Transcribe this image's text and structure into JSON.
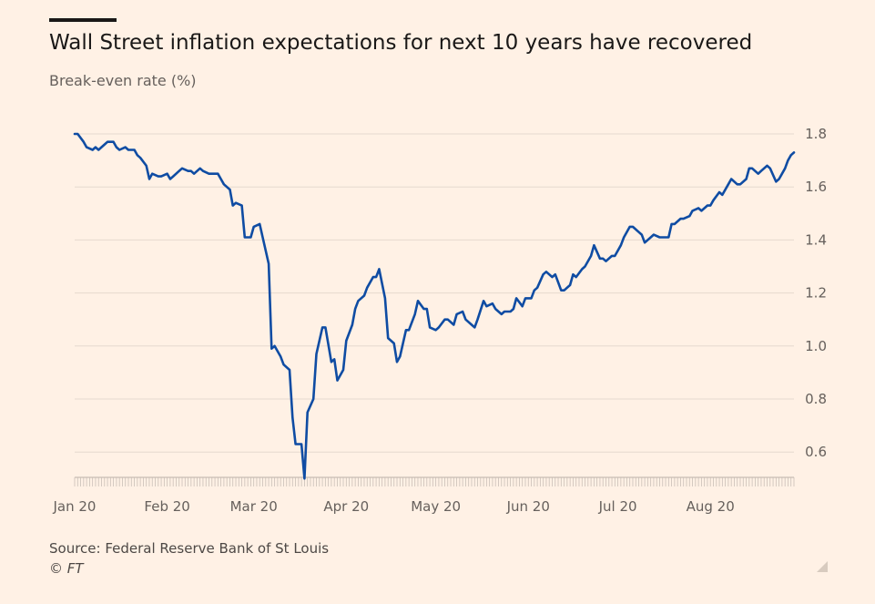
{
  "header": {
    "title": "Wall Street inflation expectations for next 10 years have recovered",
    "subtitle": "Break-even rate (%)"
  },
  "footer": {
    "source": "Source: Federal Reserve Bank of St Louis",
    "credit": "© FT"
  },
  "colors": {
    "background": "#fff1e5",
    "line": "#0f4ca3",
    "grid": "#e6d9ce",
    "text": "#33302e",
    "muted": "#66605c"
  },
  "chart_data": {
    "type": "line",
    "title": "Wall Street inflation expectations for next 10 years have recovered",
    "ylabel": "Break-even rate (%)",
    "xlabel": "",
    "ylim": [
      0.5,
      1.8
    ],
    "yticks": [
      0.6,
      0.8,
      1.0,
      1.2,
      1.4,
      1.6,
      1.8
    ],
    "ytick_labels": [
      "0.6",
      "0.8",
      "1.0",
      "1.2",
      "1.4",
      "1.6",
      "1.8"
    ],
    "x_unit": "days since 1 Jan 2020",
    "xlim": [
      0,
      241
    ],
    "xticks": [
      {
        "day": 0,
        "label": "Jan 20"
      },
      {
        "day": 31,
        "label": "Feb 20"
      },
      {
        "day": 60,
        "label": "Mar 20"
      },
      {
        "day": 91,
        "label": "Apr 20"
      },
      {
        "day": 121,
        "label": "May 20"
      },
      {
        "day": 152,
        "label": "Jun 20"
      },
      {
        "day": 182,
        "label": "Jul 20"
      },
      {
        "day": 213,
        "label": "Aug 20"
      }
    ],
    "grid": true,
    "series": [
      {
        "name": "Break-even rate",
        "points": [
          [
            0,
            1.8
          ],
          [
            1,
            1.8
          ],
          [
            3,
            1.77
          ],
          [
            4,
            1.75
          ],
          [
            6,
            1.74
          ],
          [
            7,
            1.75
          ],
          [
            8,
            1.74
          ],
          [
            10,
            1.76
          ],
          [
            11,
            1.77
          ],
          [
            13,
            1.77
          ],
          [
            14,
            1.75
          ],
          [
            15,
            1.74
          ],
          [
            17,
            1.75
          ],
          [
            18,
            1.74
          ],
          [
            20,
            1.74
          ],
          [
            21,
            1.72
          ],
          [
            22,
            1.71
          ],
          [
            24,
            1.68
          ],
          [
            25,
            1.63
          ],
          [
            26,
            1.65
          ],
          [
            28,
            1.64
          ],
          [
            29,
            1.64
          ],
          [
            31,
            1.65
          ],
          [
            32,
            1.63
          ],
          [
            33,
            1.64
          ],
          [
            35,
            1.66
          ],
          [
            36,
            1.67
          ],
          [
            38,
            1.66
          ],
          [
            39,
            1.66
          ],
          [
            40,
            1.65
          ],
          [
            42,
            1.67
          ],
          [
            43,
            1.66
          ],
          [
            45,
            1.65
          ],
          [
            46,
            1.65
          ],
          [
            48,
            1.65
          ],
          [
            49,
            1.63
          ],
          [
            50,
            1.61
          ],
          [
            52,
            1.59
          ],
          [
            53,
            1.53
          ],
          [
            54,
            1.54
          ],
          [
            56,
            1.53
          ],
          [
            57,
            1.41
          ],
          [
            59,
            1.41
          ],
          [
            60,
            1.45
          ],
          [
            62,
            1.46
          ],
          [
            63,
            1.41
          ],
          [
            65,
            1.31
          ],
          [
            66,
            0.99
          ],
          [
            67,
            1.0
          ],
          [
            69,
            0.96
          ],
          [
            70,
            0.93
          ],
          [
            72,
            0.91
          ],
          [
            73,
            0.73
          ],
          [
            74,
            0.63
          ],
          [
            76,
            0.63
          ],
          [
            77,
            0.5
          ],
          [
            78,
            0.75
          ],
          [
            80,
            0.8
          ],
          [
            81,
            0.97
          ],
          [
            83,
            1.07
          ],
          [
            84,
            1.07
          ],
          [
            86,
            0.94
          ],
          [
            87,
            0.95
          ],
          [
            88,
            0.87
          ],
          [
            90,
            0.91
          ],
          [
            91,
            1.02
          ],
          [
            93,
            1.08
          ],
          [
            94,
            1.14
          ],
          [
            95,
            1.17
          ],
          [
            97,
            1.19
          ],
          [
            98,
            1.22
          ],
          [
            100,
            1.26
          ],
          [
            101,
            1.26
          ],
          [
            102,
            1.29
          ],
          [
            104,
            1.18
          ],
          [
            105,
            1.03
          ],
          [
            107,
            1.01
          ],
          [
            108,
            0.94
          ],
          [
            109,
            0.96
          ],
          [
            111,
            1.06
          ],
          [
            112,
            1.06
          ],
          [
            114,
            1.12
          ],
          [
            115,
            1.17
          ],
          [
            117,
            1.14
          ],
          [
            118,
            1.14
          ],
          [
            119,
            1.07
          ],
          [
            121,
            1.06
          ],
          [
            122,
            1.07
          ],
          [
            124,
            1.1
          ],
          [
            125,
            1.1
          ],
          [
            127,
            1.08
          ],
          [
            128,
            1.12
          ],
          [
            130,
            1.13
          ],
          [
            131,
            1.1
          ],
          [
            133,
            1.08
          ],
          [
            134,
            1.07
          ],
          [
            135,
            1.1
          ],
          [
            137,
            1.17
          ],
          [
            138,
            1.15
          ],
          [
            140,
            1.16
          ],
          [
            141,
            1.14
          ],
          [
            143,
            1.12
          ],
          [
            144,
            1.13
          ],
          [
            146,
            1.13
          ],
          [
            147,
            1.14
          ],
          [
            148,
            1.18
          ],
          [
            150,
            1.15
          ],
          [
            151,
            1.18
          ],
          [
            153,
            1.18
          ],
          [
            154,
            1.21
          ],
          [
            155,
            1.22
          ],
          [
            157,
            1.27
          ],
          [
            158,
            1.28
          ],
          [
            160,
            1.26
          ],
          [
            161,
            1.27
          ],
          [
            163,
            1.21
          ],
          [
            164,
            1.21
          ],
          [
            166,
            1.23
          ],
          [
            167,
            1.27
          ],
          [
            168,
            1.26
          ],
          [
            170,
            1.29
          ],
          [
            171,
            1.3
          ],
          [
            173,
            1.34
          ],
          [
            174,
            1.38
          ],
          [
            176,
            1.33
          ],
          [
            177,
            1.33
          ],
          [
            178,
            1.32
          ],
          [
            180,
            1.34
          ],
          [
            181,
            1.34
          ],
          [
            183,
            1.38
          ],
          [
            184,
            1.41
          ],
          [
            186,
            1.45
          ],
          [
            187,
            1.45
          ],
          [
            189,
            1.43
          ],
          [
            190,
            1.42
          ],
          [
            191,
            1.39
          ],
          [
            193,
            1.41
          ],
          [
            194,
            1.42
          ],
          [
            196,
            1.41
          ],
          [
            197,
            1.41
          ],
          [
            199,
            1.41
          ],
          [
            200,
            1.46
          ],
          [
            201,
            1.46
          ],
          [
            203,
            1.48
          ],
          [
            204,
            1.48
          ],
          [
            206,
            1.49
          ],
          [
            207,
            1.51
          ],
          [
            209,
            1.52
          ],
          [
            210,
            1.51
          ],
          [
            212,
            1.53
          ],
          [
            213,
            1.53
          ],
          [
            214,
            1.55
          ],
          [
            216,
            1.58
          ],
          [
            217,
            1.57
          ],
          [
            219,
            1.61
          ],
          [
            220,
            1.63
          ],
          [
            222,
            1.61
          ],
          [
            223,
            1.61
          ],
          [
            225,
            1.63
          ],
          [
            226,
            1.67
          ],
          [
            227,
            1.67
          ],
          [
            229,
            1.65
          ],
          [
            230,
            1.66
          ],
          [
            232,
            1.68
          ],
          [
            233,
            1.67
          ],
          [
            235,
            1.62
          ],
          [
            236,
            1.63
          ],
          [
            238,
            1.67
          ],
          [
            239,
            1.7
          ],
          [
            240,
            1.72
          ],
          [
            241,
            1.73
          ]
        ]
      }
    ]
  }
}
